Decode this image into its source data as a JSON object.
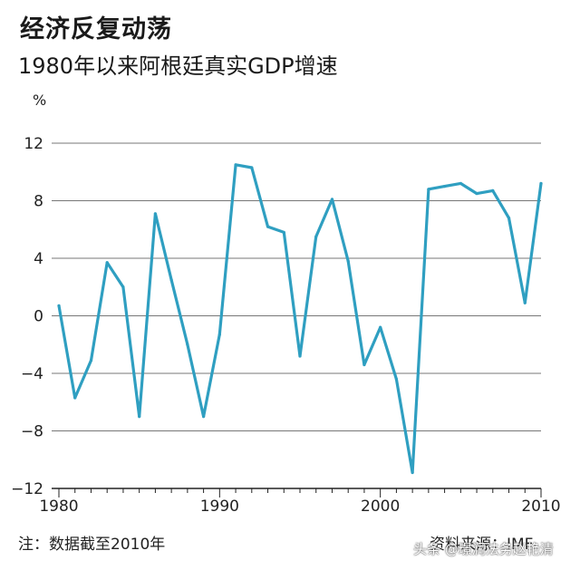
{
  "header": {
    "title": "经济反复动荡",
    "subtitle": "1980年以来阿根廷真实GDP增速"
  },
  "footer": {
    "note": "注：数据截至2010年",
    "source": "资料来源：IMF",
    "watermark": "头条 @璟润法务赵艳清"
  },
  "colors": {
    "line": "#2f9fc1",
    "grid": "#777777",
    "axis": "#222222"
  },
  "chart_data": {
    "type": "line",
    "title": "",
    "ylabel": "%",
    "xlabel": "",
    "ylim": [
      -12,
      12
    ],
    "xlim": [
      1980,
      2010
    ],
    "yticks": [
      12,
      8,
      4,
      0,
      -4,
      -8,
      -12
    ],
    "xticks": [
      1980,
      1990,
      2000,
      2010
    ],
    "grid": "horizontal",
    "x": [
      1980,
      1981,
      1982,
      1983,
      1984,
      1985,
      1986,
      1987,
      1988,
      1989,
      1990,
      1991,
      1992,
      1993,
      1994,
      1995,
      1996,
      1997,
      1998,
      1999,
      2000,
      2001,
      2002,
      2003,
      2004,
      2005,
      2006,
      2007,
      2008,
      2009,
      2010
    ],
    "values": [
      0.7,
      -5.7,
      -3.1,
      3.7,
      2.0,
      -7.0,
      7.1,
      2.5,
      -2.0,
      -7.0,
      -1.3,
      10.5,
      10.3,
      6.2,
      5.8,
      -2.8,
      5.5,
      8.1,
      3.8,
      -3.4,
      -0.8,
      -4.4,
      -10.9,
      8.8,
      9.0,
      9.2,
      8.5,
      8.7,
      6.8,
      0.9,
      9.2
    ]
  }
}
